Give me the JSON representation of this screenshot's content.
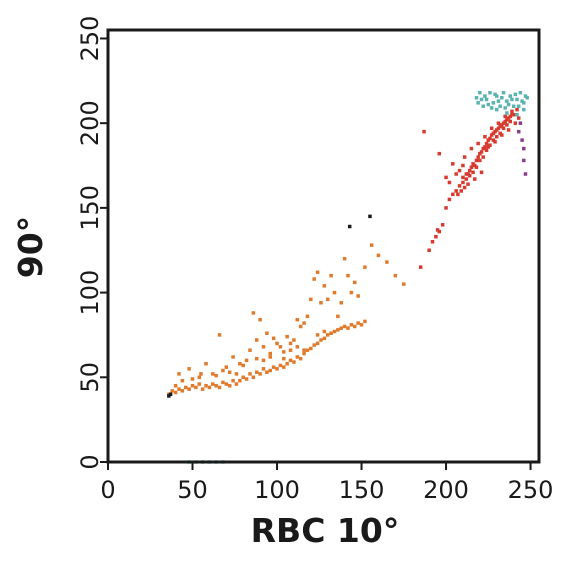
{
  "chart_data": {
    "type": "scatter",
    "title": "",
    "xlabel": "RBC 10°",
    "ylabel": "90°",
    "xlim": [
      0,
      255
    ],
    "ylim": [
      0,
      255
    ],
    "x_ticks": [
      0,
      50,
      100,
      150,
      200,
      250
    ],
    "y_ticks": [
      0,
      50,
      100,
      150,
      200,
      250
    ],
    "grid": false,
    "series": [
      {
        "color": "#E07B2E",
        "points": [
          [
            36,
            40
          ],
          [
            38,
            42
          ],
          [
            40,
            41
          ],
          [
            42,
            43
          ],
          [
            40,
            45
          ],
          [
            44,
            42
          ],
          [
            46,
            44
          ],
          [
            48,
            43
          ],
          [
            50,
            45
          ],
          [
            52,
            44
          ],
          [
            54,
            46
          ],
          [
            56,
            43
          ],
          [
            58,
            45
          ],
          [
            60,
            44
          ],
          [
            62,
            46
          ],
          [
            64,
            45
          ],
          [
            66,
            44
          ],
          [
            68,
            47
          ],
          [
            70,
            46
          ],
          [
            72,
            45
          ],
          [
            74,
            48
          ],
          [
            76,
            46
          ],
          [
            78,
            48
          ],
          [
            80,
            50
          ],
          [
            82,
            49
          ],
          [
            84,
            52
          ],
          [
            86,
            50
          ],
          [
            88,
            53
          ],
          [
            90,
            52
          ],
          [
            92,
            55
          ],
          [
            94,
            53
          ],
          [
            96,
            54
          ],
          [
            98,
            56
          ],
          [
            100,
            55
          ],
          [
            102,
            57
          ],
          [
            104,
            56
          ],
          [
            106,
            58
          ],
          [
            108,
            60
          ],
          [
            110,
            59
          ],
          [
            112,
            62
          ],
          [
            114,
            61
          ],
          [
            116,
            64
          ],
          [
            118,
            66
          ],
          [
            120,
            67
          ],
          [
            122,
            69
          ],
          [
            124,
            70
          ],
          [
            126,
            72
          ],
          [
            128,
            73
          ],
          [
            130,
            75
          ],
          [
            132,
            76
          ],
          [
            134,
            77
          ],
          [
            136,
            78
          ],
          [
            138,
            79
          ],
          [
            140,
            80
          ],
          [
            142,
            79
          ],
          [
            144,
            81
          ],
          [
            146,
            80
          ],
          [
            148,
            82
          ],
          [
            150,
            81
          ],
          [
            152,
            83
          ],
          [
            42,
            52
          ],
          [
            48,
            55
          ],
          [
            55,
            52
          ],
          [
            58,
            58
          ],
          [
            62,
            52
          ],
          [
            66,
            75
          ],
          [
            70,
            56
          ],
          [
            72,
            53
          ],
          [
            74,
            62
          ],
          [
            78,
            58
          ],
          [
            82,
            60
          ],
          [
            84,
            66
          ],
          [
            86,
            88
          ],
          [
            88,
            72
          ],
          [
            90,
            84
          ],
          [
            92,
            68
          ],
          [
            94,
            76
          ],
          [
            96,
            64
          ],
          [
            98,
            73
          ],
          [
            100,
            70
          ],
          [
            102,
            68
          ],
          [
            104,
            65
          ],
          [
            106,
            74
          ],
          [
            108,
            66
          ],
          [
            110,
            72
          ],
          [
            112,
            84
          ],
          [
            114,
            80
          ],
          [
            116,
            82
          ],
          [
            118,
            86
          ],
          [
            120,
            96
          ],
          [
            122,
            108
          ],
          [
            124,
            112
          ],
          [
            126,
            94
          ],
          [
            128,
            104
          ],
          [
            130,
            96
          ],
          [
            132,
            110
          ],
          [
            134,
            100
          ],
          [
            136,
            86
          ],
          [
            138,
            94
          ],
          [
            140,
            120
          ],
          [
            142,
            110
          ],
          [
            144,
            100
          ],
          [
            146,
            106
          ],
          [
            148,
            98
          ],
          [
            152,
            115
          ],
          [
            156,
            128
          ],
          [
            160,
            122
          ],
          [
            165,
            118
          ],
          [
            170,
            110
          ],
          [
            175,
            105
          ],
          [
            44,
            48
          ],
          [
            50,
            49
          ],
          [
            54,
            50
          ],
          [
            64,
            51
          ],
          [
            68,
            54
          ],
          [
            76,
            52
          ],
          [
            80,
            57
          ],
          [
            88,
            61
          ],
          [
            92,
            60
          ],
          [
            96,
            62
          ],
          [
            104,
            61
          ],
          [
            108,
            70
          ],
          [
            112,
            68
          ],
          [
            116,
            66
          ],
          [
            124,
            75
          ],
          [
            128,
            77
          ]
        ]
      },
      {
        "color": "#1A1A1A",
        "points": [
          [
            36,
            39
          ],
          [
            37,
            40
          ],
          [
            143,
            139
          ],
          [
            155,
            145
          ]
        ]
      },
      {
        "color": "#D73A2E",
        "points": [
          [
            185,
            115
          ],
          [
            190,
            125
          ],
          [
            192,
            130
          ],
          [
            194,
            133
          ],
          [
            195,
            137
          ],
          [
            196,
            136
          ],
          [
            198,
            140
          ],
          [
            200,
            150
          ],
          [
            202,
            155
          ],
          [
            204,
            158
          ],
          [
            206,
            160
          ],
          [
            208,
            163
          ],
          [
            210,
            165
          ],
          [
            212,
            167
          ],
          [
            213,
            170
          ],
          [
            214,
            172
          ],
          [
            215,
            174
          ],
          [
            216,
            176
          ],
          [
            217,
            175
          ],
          [
            218,
            178
          ],
          [
            219,
            180
          ],
          [
            220,
            182
          ],
          [
            221,
            183
          ],
          [
            222,
            185
          ],
          [
            223,
            186
          ],
          [
            224,
            188
          ],
          [
            225,
            190
          ],
          [
            226,
            191
          ],
          [
            227,
            193
          ],
          [
            228,
            194
          ],
          [
            229,
            195
          ],
          [
            230,
            196
          ],
          [
            231,
            197
          ],
          [
            232,
            198
          ],
          [
            233,
            199
          ],
          [
            234,
            200
          ],
          [
            235,
            201
          ],
          [
            236,
            202
          ],
          [
            237,
            203
          ],
          [
            238,
            204
          ],
          [
            239,
            205
          ],
          [
            240,
            205
          ],
          [
            210,
            168
          ],
          [
            212,
            170
          ],
          [
            214,
            169
          ],
          [
            216,
            171
          ],
          [
            218,
            174
          ],
          [
            220,
            178
          ],
          [
            222,
            180
          ],
          [
            224,
            184
          ],
          [
            226,
            187
          ],
          [
            228,
            190
          ],
          [
            230,
            192
          ],
          [
            232,
            194
          ],
          [
            234,
            197
          ],
          [
            236,
            199
          ],
          [
            238,
            201
          ],
          [
            187,
            195
          ],
          [
            196,
            182
          ],
          [
            200,
            168
          ],
          [
            204,
            176
          ],
          [
            210,
            175
          ],
          [
            206,
            170
          ],
          [
            202,
            165
          ],
          [
            208,
            172
          ],
          [
            211,
            180
          ],
          [
            215,
            185
          ],
          [
            219,
            188
          ],
          [
            223,
            192
          ],
          [
            227,
            197
          ],
          [
            231,
            200
          ],
          [
            235,
            204
          ],
          [
            239,
            207
          ],
          [
            242,
            208
          ],
          [
            225,
            186
          ],
          [
            229,
            189
          ],
          [
            233,
            193
          ],
          [
            237,
            196
          ],
          [
            241,
            200
          ],
          [
            243,
            203
          ],
          [
            213,
            164
          ],
          [
            217,
            167
          ],
          [
            221,
            171
          ],
          [
            211,
            162
          ],
          [
            209,
            160
          ],
          [
            207,
            158
          ]
        ]
      },
      {
        "color": "#5AB3AE",
        "points": [
          [
            218,
            215
          ],
          [
            220,
            218
          ],
          [
            222,
            210
          ],
          [
            224,
            214
          ],
          [
            226,
            218
          ],
          [
            228,
            212
          ],
          [
            230,
            216
          ],
          [
            232,
            210
          ],
          [
            234,
            218
          ],
          [
            236,
            213
          ],
          [
            238,
            216
          ],
          [
            240,
            210
          ],
          [
            242,
            214
          ],
          [
            244,
            218
          ],
          [
            246,
            212
          ],
          [
            248,
            215
          ],
          [
            219,
            212
          ],
          [
            223,
            216
          ],
          [
            227,
            209
          ],
          [
            231,
            213
          ],
          [
            235,
            209
          ],
          [
            239,
            214
          ],
          [
            243,
            210
          ],
          [
            247,
            216
          ],
          [
            221,
            214
          ],
          [
            225,
            211
          ],
          [
            229,
            217
          ],
          [
            233,
            215
          ],
          [
            237,
            211
          ],
          [
            241,
            217
          ],
          [
            245,
            213
          ],
          [
            246,
            208
          ],
          [
            230,
            208
          ],
          [
            236,
            206
          ],
          [
            242,
            205
          ],
          [
            48,
            0
          ],
          [
            52,
            0
          ],
          [
            56,
            0
          ],
          [
            60,
            0
          ],
          [
            64,
            0
          ],
          [
            68,
            0
          ]
        ]
      },
      {
        "color": "#8A3C8E",
        "points": [
          [
            244,
            200
          ],
          [
            245,
            190
          ],
          [
            246,
            185
          ],
          [
            246,
            178
          ],
          [
            247,
            170
          ],
          [
            243,
            195
          ]
        ]
      }
    ]
  }
}
